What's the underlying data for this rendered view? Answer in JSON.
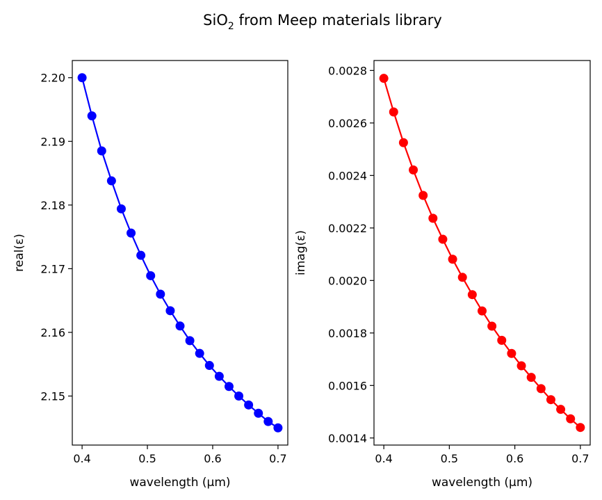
{
  "figure": {
    "title_main": "SiO",
    "title_sub": "2",
    "title_rest": " from Meep materials library"
  },
  "chart_data": [
    {
      "type": "line",
      "xlabel": "wavelength (µm)",
      "ylabel": "real(ε)",
      "xlim": [
        0.385,
        0.715
      ],
      "ylim": [
        2.1423,
        2.2027
      ],
      "xticks": [
        0.4,
        0.5,
        0.6,
        0.7
      ],
      "xtick_labels": [
        "0.4",
        "0.5",
        "0.6",
        "0.7"
      ],
      "yticks": [
        2.15,
        2.16,
        2.17,
        2.18,
        2.19,
        2.2
      ],
      "ytick_labels": [
        "2.15",
        "2.16",
        "2.17",
        "2.18",
        "2.19",
        "2.20"
      ],
      "grid": false,
      "series": [
        {
          "color": "#0000ff",
          "marker": "circle",
          "x": [
            0.4,
            0.415,
            0.43,
            0.445,
            0.46,
            0.475,
            0.49,
            0.505,
            0.52,
            0.535,
            0.55,
            0.565,
            0.58,
            0.595,
            0.61,
            0.625,
            0.64,
            0.655,
            0.67,
            0.685,
            0.7
          ],
          "y": [
            2.2,
            2.194,
            2.1885,
            2.1838,
            2.1794,
            2.1756,
            2.1721,
            2.1689,
            2.166,
            2.1634,
            2.161,
            2.1587,
            2.1567,
            2.1548,
            2.1531,
            2.1515,
            2.15,
            2.1486,
            2.1473,
            2.146,
            2.145
          ]
        }
      ]
    },
    {
      "type": "line",
      "xlabel": "wavelength (µm)",
      "ylabel": "imag(ε)",
      "xlim": [
        0.385,
        0.715
      ],
      "ylim": [
        0.001373,
        0.002838
      ],
      "xticks": [
        0.4,
        0.5,
        0.6,
        0.7
      ],
      "xtick_labels": [
        "0.4",
        "0.5",
        "0.6",
        "0.7"
      ],
      "yticks": [
        0.0014,
        0.0016,
        0.0018,
        0.002,
        0.0022,
        0.0024,
        0.0026,
        0.0028
      ],
      "ytick_labels": [
        "0.0014",
        "0.0016",
        "0.0018",
        "0.0020",
        "0.0022",
        "0.0024",
        "0.0026",
        "0.0028"
      ],
      "grid": false,
      "series": [
        {
          "color": "#ff0000",
          "marker": "circle",
          "x": [
            0.4,
            0.415,
            0.43,
            0.445,
            0.46,
            0.475,
            0.49,
            0.505,
            0.52,
            0.535,
            0.55,
            0.565,
            0.58,
            0.595,
            0.61,
            0.625,
            0.64,
            0.655,
            0.67,
            0.685,
            0.7
          ],
          "y": [
            0.00277,
            0.002642,
            0.002525,
            0.002421,
            0.002324,
            0.002237,
            0.002157,
            0.002081,
            0.002012,
            0.001946,
            0.001884,
            0.001826,
            0.001772,
            0.001722,
            0.001675,
            0.001631,
            0.001588,
            0.001546,
            0.001509,
            0.001473,
            0.00144
          ]
        }
      ]
    }
  ]
}
